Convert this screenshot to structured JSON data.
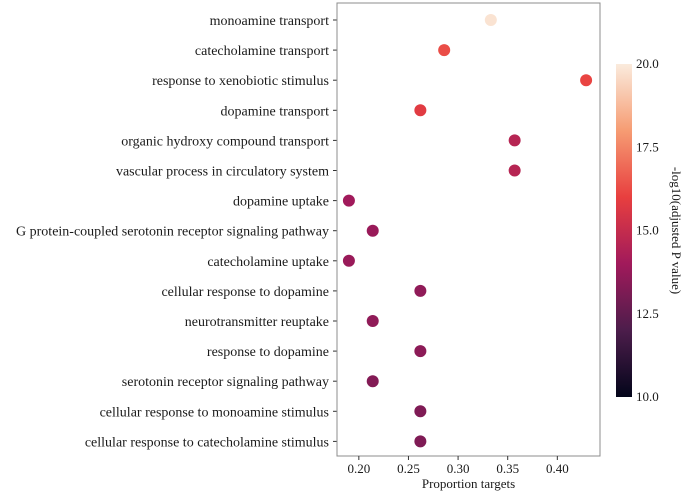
{
  "chart_data": {
    "type": "scatter",
    "title": "",
    "xlabel": "Proportion targets",
    "ylabel": "",
    "xlim": [
      0.178,
      0.443
    ],
    "xticks": [
      0.2,
      0.25,
      0.3,
      0.35,
      0.4
    ],
    "xtick_labels": [
      "0.20",
      "0.25",
      "0.30",
      "0.35",
      "0.40"
    ],
    "grid": false,
    "categories": [
      "monoamine transport",
      "catecholamine transport",
      "response to xenobiotic stimulus",
      "dopamine transport",
      "organic hydroxy compound transport",
      "vascular process in circulatory system",
      "dopamine uptake",
      "G protein-coupled serotonin receptor signaling pathway",
      "catecholamine uptake",
      "cellular response to dopamine",
      "neurotransmitter reuptake",
      "response to dopamine",
      "serotonin receptor signaling pathway",
      "cellular response to monoamine stimulus",
      "cellular response to catecholamine stimulus"
    ],
    "x": [
      0.333,
      0.286,
      0.429,
      0.262,
      0.357,
      0.357,
      0.19,
      0.214,
      0.19,
      0.262,
      0.214,
      0.262,
      0.214,
      0.262,
      0.262
    ],
    "color_values": [
      19.8,
      16.3,
      16.1,
      15.8,
      14.6,
      14.6,
      14.0,
      13.8,
      13.8,
      13.6,
      13.6,
      13.5,
      13.3,
      13.2,
      13.2
    ],
    "colorbar": {
      "title": "-log10(adjusted P value)",
      "range": [
        10.0,
        20.0
      ],
      "ticks": [
        10.0,
        12.5,
        15.0,
        17.5,
        20.0
      ],
      "tick_labels": [
        "10.0",
        "12.5",
        "15.0",
        "17.5",
        "20.0"
      ],
      "colors": [
        "#03051a",
        "#4c1d4b",
        "#a11a5b",
        "#e83f3f",
        "#f69c73",
        "#faebdd"
      ],
      "position": "right"
    }
  }
}
